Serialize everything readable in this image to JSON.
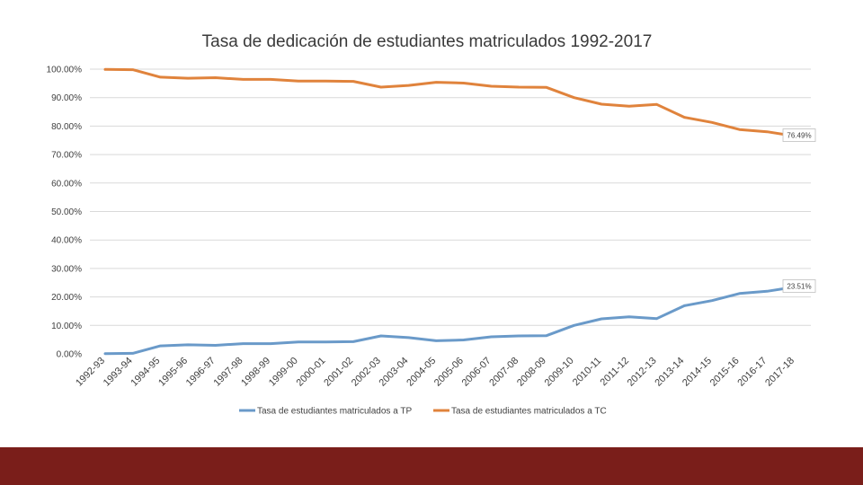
{
  "chart_data": {
    "type": "line",
    "title": "Tasa de dedicación de estudiantes matriculados 1992-2017",
    "xlabel": "",
    "ylabel": "",
    "ylim": [
      0,
      100
    ],
    "yticks": [
      "0.00%",
      "10.00%",
      "20.00%",
      "30.00%",
      "40.00%",
      "50.00%",
      "60.00%",
      "70.00%",
      "80.00%",
      "90.00%",
      "100.00%"
    ],
    "categories": [
      "1992-93",
      "1993-94",
      "1994-95",
      "1995-96",
      "1996-97",
      "1997-98",
      "1998-99",
      "1999-00",
      "2000-01",
      "2001-02",
      "2002-03",
      "2003-04",
      "2004-05",
      "2005-06",
      "2006-07",
      "2007-08",
      "2008-09",
      "2009-10",
      "2010-11",
      "2011-12",
      "2012-13",
      "2013-14",
      "2014-15",
      "2015-16",
      "2016-17",
      "2017-18"
    ],
    "series": [
      {
        "name": "Tasa de estudiantes matriculados a TP",
        "color": "#6a9ac9",
        "values": [
          0.1,
          0.2,
          2.8,
          3.2,
          3.0,
          3.6,
          3.6,
          4.2,
          4.2,
          4.3,
          6.3,
          5.7,
          4.6,
          4.9,
          6.0,
          6.3,
          6.4,
          10.0,
          12.3,
          13.0,
          12.4,
          16.9,
          18.7,
          21.2,
          22.0,
          23.51
        ],
        "end_label": "23.51%"
      },
      {
        "name": "Tasa de estudiantes matriculados a TC",
        "color": "#e0833c",
        "values": [
          99.9,
          99.8,
          97.2,
          96.8,
          97.0,
          96.4,
          96.4,
          95.8,
          95.8,
          95.7,
          93.7,
          94.3,
          95.4,
          95.1,
          94.0,
          93.7,
          93.6,
          90.0,
          87.7,
          87.0,
          87.6,
          83.1,
          81.3,
          78.8,
          78.0,
          76.49
        ],
        "end_label": "76.49%"
      }
    ],
    "legend": "bottom",
    "grid": true
  },
  "colors": {
    "grid": "#d9d9d9",
    "footer_band": "#7a1e1a"
  }
}
